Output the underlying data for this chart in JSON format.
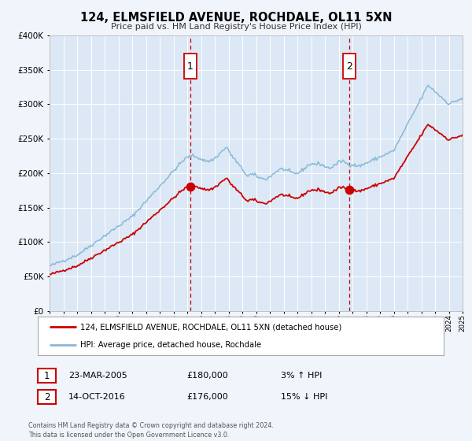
{
  "title": "124, ELMSFIELD AVENUE, ROCHDALE, OL11 5XN",
  "subtitle": "Price paid vs. HM Land Registry's House Price Index (HPI)",
  "legend_entry1": "124, ELMSFIELD AVENUE, ROCHDALE, OL11 5XN (detached house)",
  "legend_entry2": "HPI: Average price, detached house, Rochdale",
  "sale1_label": "1",
  "sale1_date": "23-MAR-2005",
  "sale1_price": "£180,000",
  "sale1_hpi": "3% ↑ HPI",
  "sale1_year": 2005.22,
  "sale1_value": 180000,
  "sale2_label": "2",
  "sale2_date": "14-OCT-2016",
  "sale2_price": "£176,000",
  "sale2_hpi": "15% ↓ HPI",
  "sale2_year": 2016.79,
  "sale2_value": 176000,
  "background_color": "#f0f4fb",
  "plot_bg_color": "#dce8f5",
  "red_line_color": "#cc0000",
  "blue_line_color": "#89b8d8",
  "dashed_line_color": "#cc0000",
  "grid_color": "#ffffff",
  "ylim": [
    0,
    400000
  ],
  "xlim_start": 1995,
  "xlim_end": 2025,
  "footnote": "Contains HM Land Registry data © Crown copyright and database right 2024.\nThis data is licensed under the Open Government Licence v3.0."
}
